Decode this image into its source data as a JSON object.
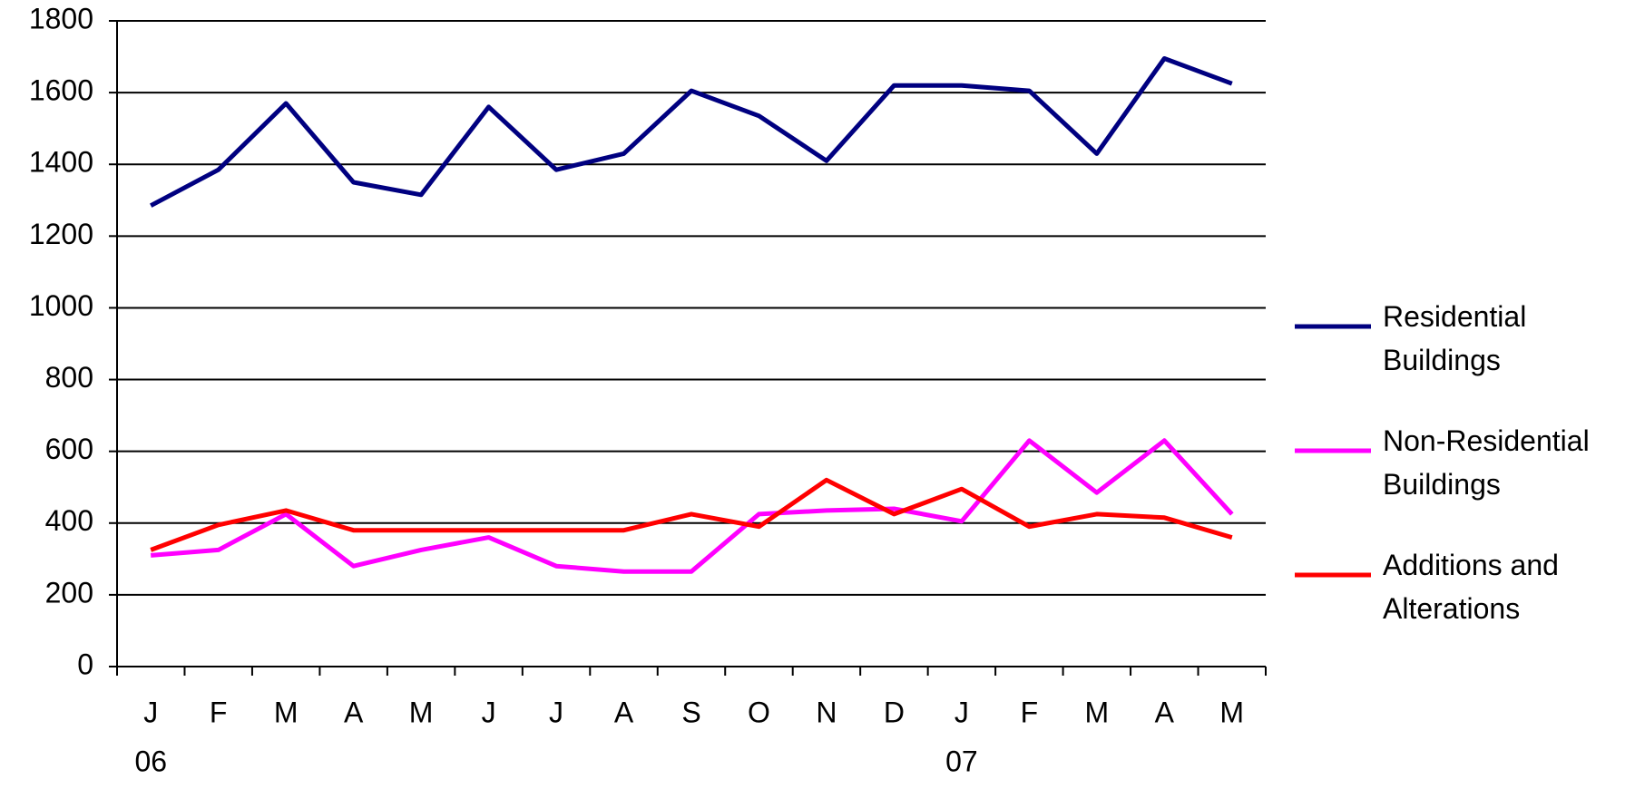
{
  "chart_data": {
    "type": "line",
    "categories": [
      "J",
      "F",
      "M",
      "A",
      "M",
      "J",
      "J",
      "A",
      "S",
      "O",
      "N",
      "D",
      "J",
      "F",
      "M",
      "A",
      "M"
    ],
    "category_years": [
      "06",
      null,
      null,
      null,
      null,
      null,
      null,
      null,
      null,
      null,
      null,
      null,
      "07",
      null,
      null,
      null,
      null
    ],
    "series": [
      {
        "name": "Residential Buildings",
        "color": "#000080",
        "values": [
          1285,
          1385,
          1570,
          1350,
          1315,
          1560,
          1385,
          1430,
          1605,
          1535,
          1410,
          1620,
          1620,
          1605,
          1430,
          1695,
          1625
        ]
      },
      {
        "name": "Non-Residential Buildings",
        "color": "#ff00ff",
        "values": [
          310,
          325,
          425,
          280,
          325,
          360,
          280,
          265,
          265,
          425,
          435,
          440,
          405,
          630,
          485,
          630,
          425
        ]
      },
      {
        "name": "Additions and Alterations",
        "color": "#ff0000",
        "values": [
          325,
          395,
          435,
          380,
          380,
          380,
          380,
          380,
          425,
          390,
          520,
          425,
          495,
          390,
          425,
          415,
          360
        ]
      }
    ],
    "ylim": [
      0,
      1800
    ],
    "yticks": [
      0,
      200,
      400,
      600,
      800,
      1000,
      1200,
      1400,
      1600,
      1800
    ],
    "grid": true,
    "legend": "right"
  }
}
